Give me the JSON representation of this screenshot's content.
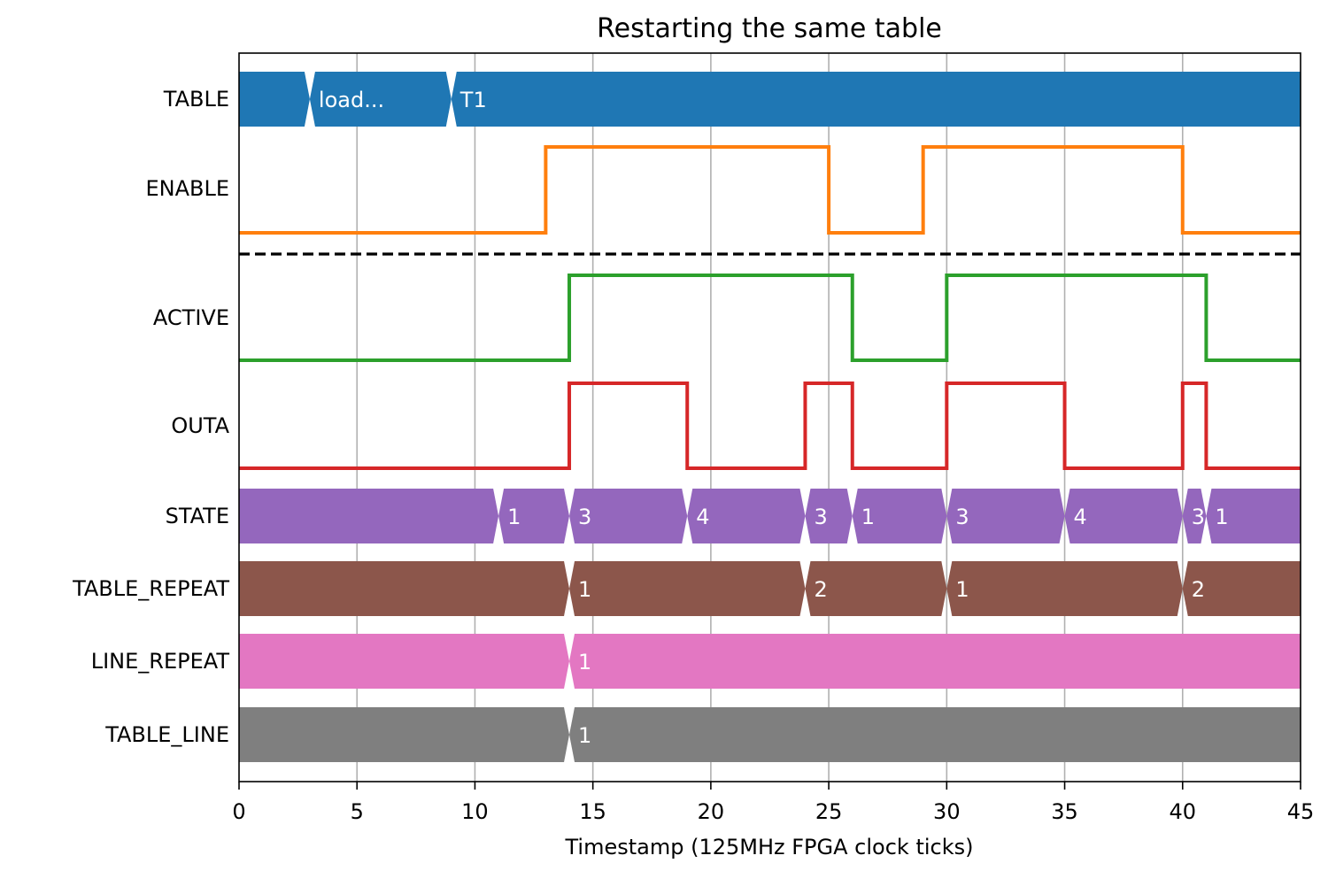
{
  "chart_data": {
    "type": "timing-diagram",
    "title": "Restarting the same table",
    "xlabel": "Timestamp (125MHz FPGA clock ticks)",
    "xlim": [
      0,
      45
    ],
    "xticks": [
      0,
      5,
      10,
      15,
      20,
      25,
      30,
      35,
      40,
      45
    ],
    "grid": "vertical",
    "separator_after": "ENABLE",
    "rows": [
      {
        "name": "TABLE",
        "kind": "bus",
        "color": "#1f77b4",
        "segments": [
          {
            "start": 0,
            "label": ""
          },
          {
            "start": 3,
            "label": "load..."
          },
          {
            "start": 9,
            "label": "T1"
          }
        ]
      },
      {
        "name": "ENABLE",
        "kind": "bit",
        "color": "#ff7f0e",
        "initial": 0,
        "transitions": [
          [
            13,
            1
          ],
          [
            25,
            0
          ],
          [
            29,
            1
          ],
          [
            40,
            0
          ]
        ]
      },
      {
        "name": "ACTIVE",
        "kind": "bit",
        "color": "#2ca02c",
        "initial": 0,
        "transitions": [
          [
            14,
            1
          ],
          [
            26,
            0
          ],
          [
            30,
            1
          ],
          [
            41,
            0
          ]
        ]
      },
      {
        "name": "OUTA",
        "kind": "bit",
        "color": "#d62728",
        "initial": 0,
        "transitions": [
          [
            14,
            1
          ],
          [
            19,
            0
          ],
          [
            24,
            1
          ],
          [
            26,
            0
          ],
          [
            30,
            1
          ],
          [
            35,
            0
          ],
          [
            40,
            1
          ],
          [
            41,
            0
          ]
        ]
      },
      {
        "name": "STATE",
        "kind": "bus",
        "color": "#9467bd",
        "segments": [
          {
            "start": 0,
            "label": ""
          },
          {
            "start": 11,
            "label": "1"
          },
          {
            "start": 14,
            "label": "3"
          },
          {
            "start": 19,
            "label": "4"
          },
          {
            "start": 24,
            "label": "3"
          },
          {
            "start": 26,
            "label": "1"
          },
          {
            "start": 30,
            "label": "3"
          },
          {
            "start": 35,
            "label": "4"
          },
          {
            "start": 40,
            "label": "3"
          },
          {
            "start": 41,
            "label": "1"
          }
        ]
      },
      {
        "name": "TABLE_REPEAT",
        "kind": "bus",
        "color": "#8c564b",
        "segments": [
          {
            "start": 0,
            "label": ""
          },
          {
            "start": 14,
            "label": "1"
          },
          {
            "start": 24,
            "label": "2"
          },
          {
            "start": 30,
            "label": "1"
          },
          {
            "start": 40,
            "label": "2"
          }
        ]
      },
      {
        "name": "LINE_REPEAT",
        "kind": "bus",
        "color": "#e377c2",
        "segments": [
          {
            "start": 0,
            "label": ""
          },
          {
            "start": 14,
            "label": "1"
          }
        ]
      },
      {
        "name": "TABLE_LINE",
        "kind": "bus",
        "color": "#7f7f7f",
        "segments": [
          {
            "start": 0,
            "label": ""
          },
          {
            "start": 14,
            "label": "1"
          }
        ]
      }
    ]
  }
}
